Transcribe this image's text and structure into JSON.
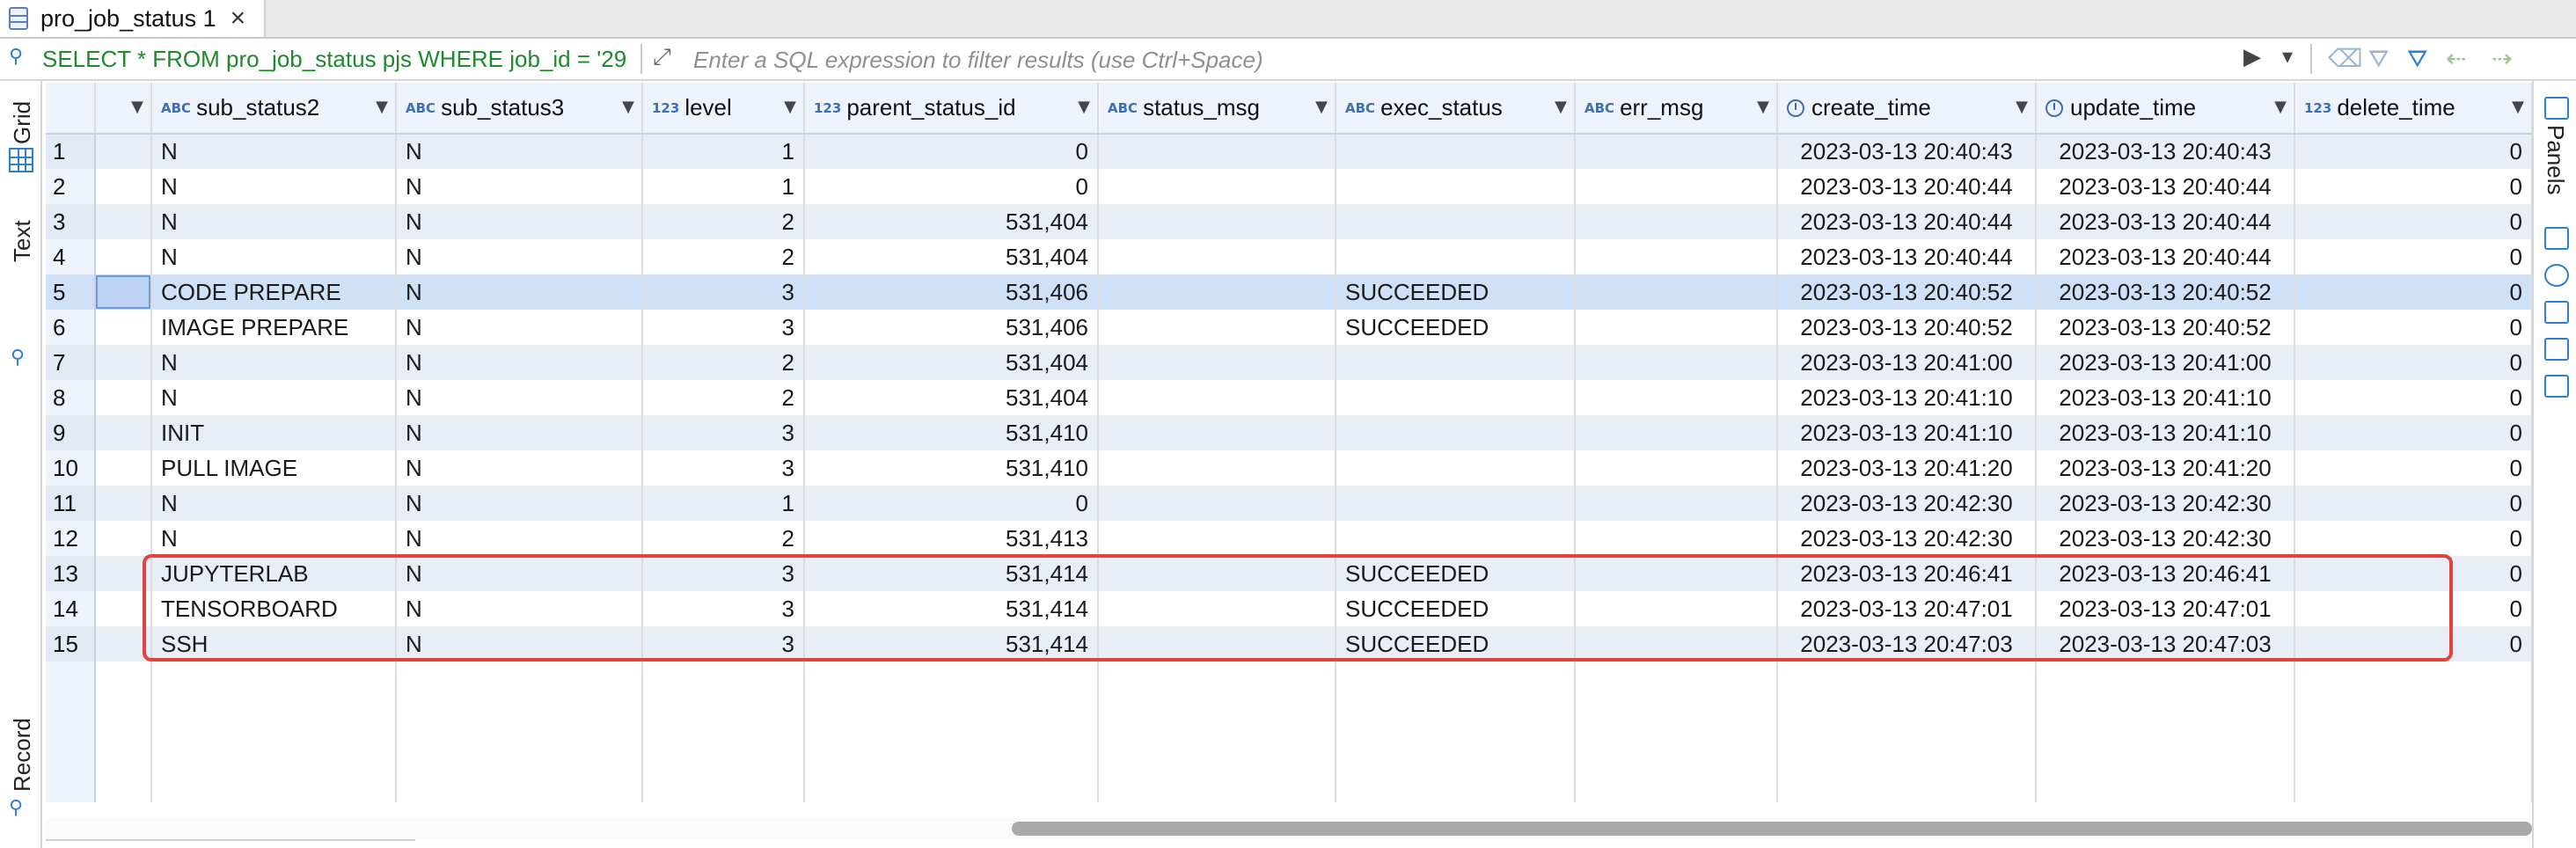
{
  "tab": {
    "label": "pro_job_status 1",
    "close": "×"
  },
  "filterbar": {
    "sql": "SELECT * FROM pro_job_status pjs WHERE job_id = '29",
    "placeholder": "Enter a SQL expression to filter results (use Ctrl+Space)"
  },
  "leftbar": {
    "grid_label": "Grid",
    "text_label": "Text",
    "record_label": "Record"
  },
  "rightbar": {
    "panels_label": "Panels"
  },
  "grid": {
    "columns": [
      {
        "name": "sub_status2",
        "type": "ABC"
      },
      {
        "name": "sub_status3",
        "type": "ABC"
      },
      {
        "name": "level",
        "type": "123"
      },
      {
        "name": "parent_status_id",
        "type": "123"
      },
      {
        "name": "status_msg",
        "type": "ABC"
      },
      {
        "name": "exec_status",
        "type": "ABC"
      },
      {
        "name": "err_msg",
        "type": "ABC"
      },
      {
        "name": "create_time",
        "type": "clock"
      },
      {
        "name": "update_time",
        "type": "clock"
      },
      {
        "name": "delete_time",
        "type": "123"
      }
    ],
    "rows": [
      {
        "n": "1",
        "sub_status2": "N",
        "sub_status3": "N",
        "level": "1",
        "parent_status_id": "0",
        "status_msg": "",
        "exec_status": "",
        "err_msg": "",
        "create_time": "2023-03-13 20:40:43",
        "update_time": "2023-03-13 20:40:43",
        "delete_time": "0"
      },
      {
        "n": "2",
        "sub_status2": "N",
        "sub_status3": "N",
        "level": "1",
        "parent_status_id": "0",
        "status_msg": "",
        "exec_status": "",
        "err_msg": "",
        "create_time": "2023-03-13 20:40:44",
        "update_time": "2023-03-13 20:40:44",
        "delete_time": "0"
      },
      {
        "n": "3",
        "sub_status2": "N",
        "sub_status3": "N",
        "level": "2",
        "parent_status_id": "531,404",
        "status_msg": "",
        "exec_status": "",
        "err_msg": "",
        "create_time": "2023-03-13 20:40:44",
        "update_time": "2023-03-13 20:40:44",
        "delete_time": "0"
      },
      {
        "n": "4",
        "sub_status2": "N",
        "sub_status3": "N",
        "level": "2",
        "parent_status_id": "531,404",
        "status_msg": "",
        "exec_status": "",
        "err_msg": "",
        "create_time": "2023-03-13 20:40:44",
        "update_time": "2023-03-13 20:40:44",
        "delete_time": "0"
      },
      {
        "n": "5",
        "sub_status2": "CODE PREPARE",
        "sub_status3": "N",
        "level": "3",
        "parent_status_id": "531,406",
        "status_msg": "",
        "exec_status": "SUCCEEDED",
        "err_msg": "",
        "create_time": "2023-03-13 20:40:52",
        "update_time": "2023-03-13 20:40:52",
        "delete_time": "0"
      },
      {
        "n": "6",
        "sub_status2": "IMAGE PREPARE",
        "sub_status3": "N",
        "level": "3",
        "parent_status_id": "531,406",
        "status_msg": "",
        "exec_status": "SUCCEEDED",
        "err_msg": "",
        "create_time": "2023-03-13 20:40:52",
        "update_time": "2023-03-13 20:40:52",
        "delete_time": "0"
      },
      {
        "n": "7",
        "sub_status2": "N",
        "sub_status3": "N",
        "level": "2",
        "parent_status_id": "531,404",
        "status_msg": "",
        "exec_status": "",
        "err_msg": "",
        "create_time": "2023-03-13 20:41:00",
        "update_time": "2023-03-13 20:41:00",
        "delete_time": "0"
      },
      {
        "n": "8",
        "sub_status2": "N",
        "sub_status3": "N",
        "level": "2",
        "parent_status_id": "531,404",
        "status_msg": "",
        "exec_status": "",
        "err_msg": "",
        "create_time": "2023-03-13 20:41:10",
        "update_time": "2023-03-13 20:41:10",
        "delete_time": "0"
      },
      {
        "n": "9",
        "sub_status2": "INIT",
        "sub_status3": "N",
        "level": "3",
        "parent_status_id": "531,410",
        "status_msg": "",
        "exec_status": "",
        "err_msg": "",
        "create_time": "2023-03-13 20:41:10",
        "update_time": "2023-03-13 20:41:10",
        "delete_time": "0"
      },
      {
        "n": "10",
        "sub_status2": "PULL IMAGE",
        "sub_status3": "N",
        "level": "3",
        "parent_status_id": "531,410",
        "status_msg": "",
        "exec_status": "",
        "err_msg": "",
        "create_time": "2023-03-13 20:41:20",
        "update_time": "2023-03-13 20:41:20",
        "delete_time": "0"
      },
      {
        "n": "11",
        "sub_status2": "N",
        "sub_status3": "N",
        "level": "1",
        "parent_status_id": "0",
        "status_msg": "",
        "exec_status": "",
        "err_msg": "",
        "create_time": "2023-03-13 20:42:30",
        "update_time": "2023-03-13 20:42:30",
        "delete_time": "0"
      },
      {
        "n": "12",
        "sub_status2": "N",
        "sub_status3": "N",
        "level": "2",
        "parent_status_id": "531,413",
        "status_msg": "",
        "exec_status": "",
        "err_msg": "",
        "create_time": "2023-03-13 20:42:30",
        "update_time": "2023-03-13 20:42:30",
        "delete_time": "0"
      },
      {
        "n": "13",
        "sub_status2": "JUPYTERLAB",
        "sub_status3": "N",
        "level": "3",
        "parent_status_id": "531,414",
        "status_msg": "",
        "exec_status": "SUCCEEDED",
        "err_msg": "",
        "create_time": "2023-03-13 20:46:41",
        "update_time": "2023-03-13 20:46:41",
        "delete_time": "0"
      },
      {
        "n": "14",
        "sub_status2": "TENSORBOARD",
        "sub_status3": "N",
        "level": "3",
        "parent_status_id": "531,414",
        "status_msg": "",
        "exec_status": "SUCCEEDED",
        "err_msg": "",
        "create_time": "2023-03-13 20:47:01",
        "update_time": "2023-03-13 20:47:01",
        "delete_time": "0"
      },
      {
        "n": "15",
        "sub_status2": "SSH",
        "sub_status3": "N",
        "level": "3",
        "parent_status_id": "531,414",
        "status_msg": "",
        "exec_status": "SUCCEEDED",
        "err_msg": "",
        "create_time": "2023-03-13 20:47:03",
        "update_time": "2023-03-13 20:47:03",
        "delete_time": "0"
      }
    ],
    "selected_row": "5",
    "highlight_rows": [
      "13",
      "14",
      "15"
    ]
  },
  "colors": {
    "sql_green": "#1d8a2e",
    "accent_blue": "#2d7fd3",
    "highlight_red": "#e0443a"
  }
}
